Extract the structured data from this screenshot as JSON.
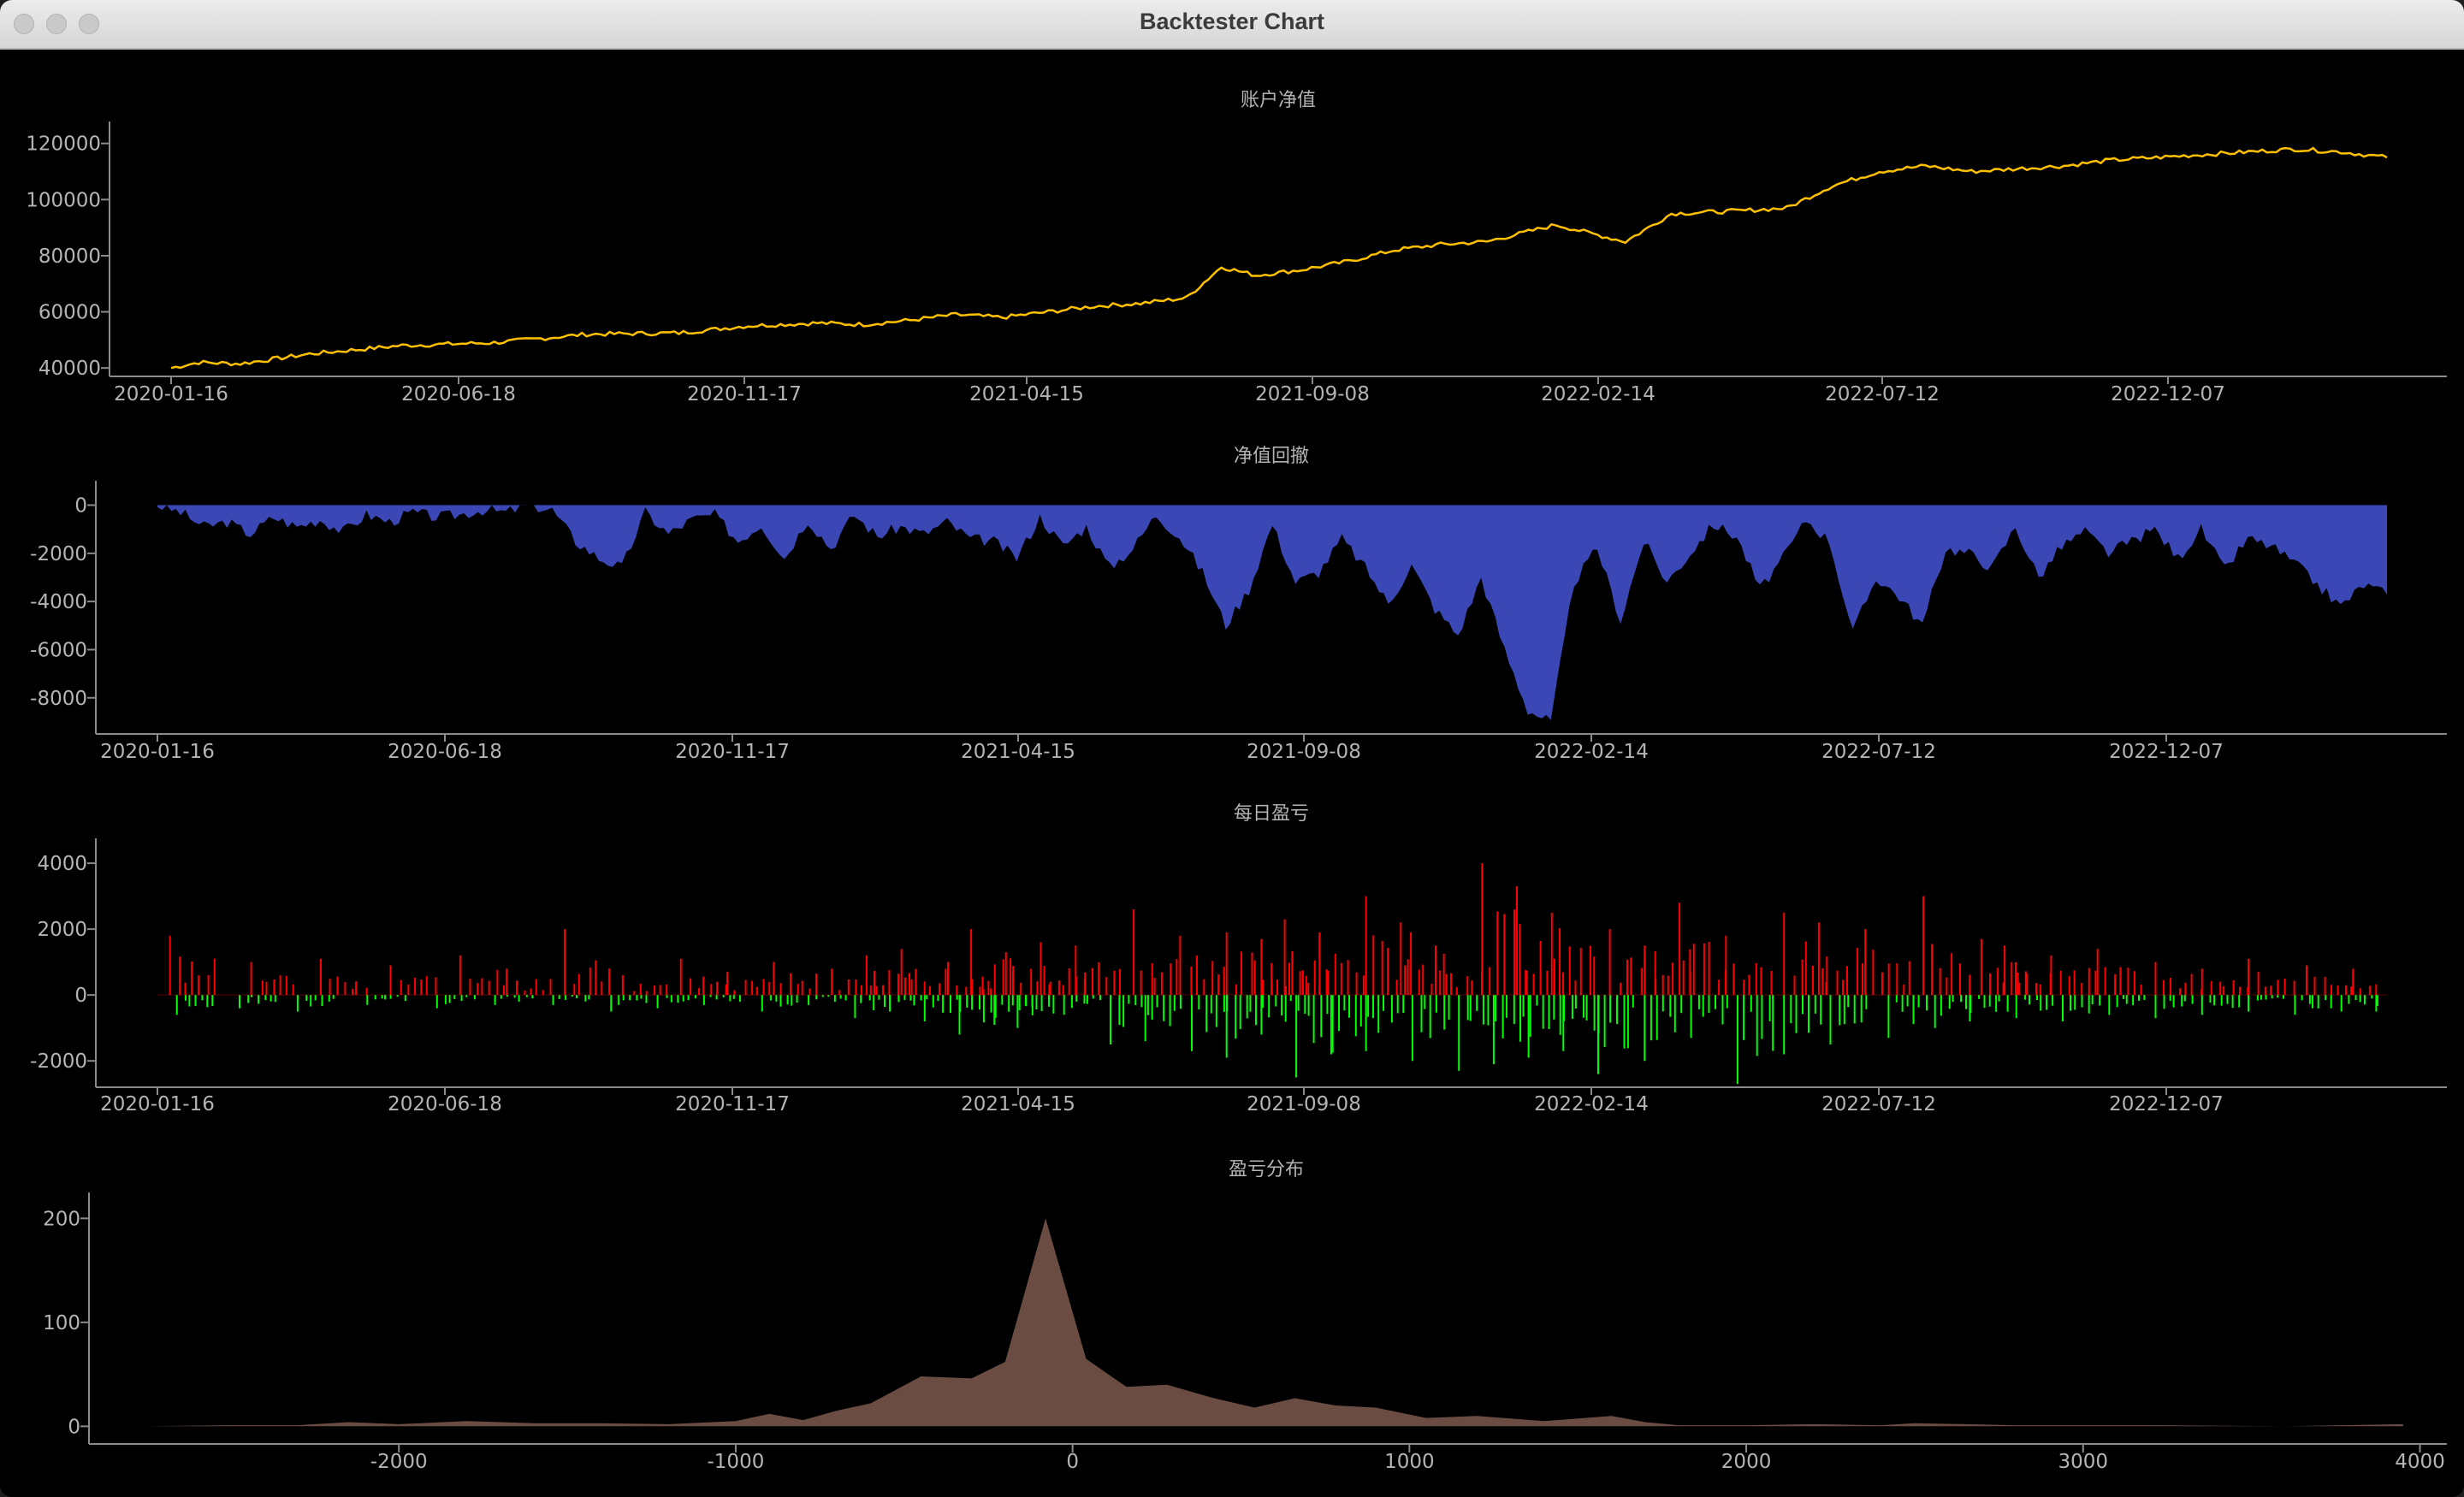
{
  "window": {
    "title": "Backtester Chart"
  },
  "colors": {
    "background": "#000000",
    "axis": "#8a8a8a",
    "text": "#b4b4b4",
    "balance_line": "#ffc000",
    "drawdown_fill": "#3a47b5",
    "pnl_profit": "#ff0000",
    "pnl_loss": "#00ff00",
    "distribution_fill": "#6b4c43"
  },
  "chart_data": [
    {
      "type": "line",
      "title": "账户净值",
      "x_tick_labels": [
        "2020-01-16",
        "2020-06-18",
        "2020-11-17",
        "2021-04-15",
        "2021-09-08",
        "2022-02-14",
        "2022-07-12",
        "2022-12-07"
      ],
      "y_ticks": [
        40000,
        60000,
        80000,
        100000,
        120000
      ],
      "ylim": [
        37000,
        126000
      ],
      "grid": false,
      "series": [
        {
          "x": [
            0,
            12,
            30,
            60,
            100,
            140,
            180,
            220,
            250,
            280,
            300,
            320,
            340,
            360,
            380,
            400,
            420,
            440,
            455,
            470,
            490,
            510,
            530,
            550,
            570,
            600,
            630,
            650,
            680,
            700,
            720,
            740,
            760,
            780,
            800,
            820,
            840,
            860,
            880,
            900,
            920,
            940,
            960
          ],
          "values": [
            40000,
            42000,
            41500,
            45000,
            48000,
            49000,
            52000,
            52500,
            55000,
            56000,
            55500,
            57000,
            59000,
            58000,
            60000,
            62000,
            63000,
            65000,
            76000,
            73000,
            75000,
            78000,
            82000,
            84000,
            85000,
            91000,
            85000,
            95000,
            96000,
            97000,
            105000,
            110000,
            112000,
            110000,
            111000,
            112000,
            114000,
            115000,
            116000,
            117000,
            118000,
            117000,
            115000
          ]
        }
      ]
    },
    {
      "type": "area",
      "title": "净值回撤",
      "x_tick_labels": [
        "2020-01-16",
        "2020-06-18",
        "2020-11-17",
        "2021-04-15",
        "2021-09-08",
        "2022-02-14",
        "2022-07-12",
        "2022-12-07"
      ],
      "y_ticks": [
        0,
        -2000,
        -4000,
        -6000,
        -8000
      ],
      "ylim": [
        -9500,
        800
      ],
      "grid": false,
      "series": [
        {
          "x": [
            0,
            10,
            20,
            30,
            40,
            50,
            60,
            70,
            80,
            90,
            100,
            110,
            120,
            130,
            140,
            150,
            160,
            170,
            180,
            190,
            200,
            210,
            220,
            230,
            240,
            250,
            260,
            270,
            280,
            290,
            300,
            310,
            320,
            330,
            340,
            350,
            360,
            370,
            380,
            390,
            400,
            410,
            420,
            430,
            440,
            450,
            460,
            470,
            480,
            490,
            500,
            510,
            520,
            530,
            540,
            550,
            560,
            570,
            580,
            590,
            600,
            610,
            620,
            630,
            640,
            650,
            660,
            670,
            680,
            690,
            700,
            710,
            720,
            730,
            740,
            750,
            760,
            770,
            780,
            790,
            800,
            810,
            820,
            830,
            840,
            850,
            860,
            870,
            880,
            890,
            900,
            910,
            920,
            930,
            940,
            950,
            960
          ],
          "values": [
            0,
            -300,
            -900,
            -700,
            -1200,
            -500,
            -900,
            -600,
            -1100,
            -400,
            -700,
            -300,
            -500,
            -400,
            -200,
            -300,
            0,
            -200,
            -1500,
            -2200,
            -2600,
            -300,
            -1200,
            -600,
            -400,
            -1500,
            -800,
            -2200,
            -600,
            -1800,
            -400,
            -1300,
            -900,
            -1200,
            -700,
            -1400,
            -1500,
            -2200,
            -500,
            -1700,
            -900,
            -2600,
            -1800,
            -400,
            -1300,
            -2800,
            -5000,
            -3500,
            -800,
            -3200,
            -2800,
            -1400,
            -2600,
            -4100,
            -2500,
            -4300,
            -5400,
            -3000,
            -6000,
            -8500,
            -9000,
            -3200,
            -1800,
            -4800,
            -1500,
            -3200,
            -2000,
            -800,
            -1300,
            -3500,
            -2200,
            -600,
            -1500,
            -5300,
            -3000,
            -3800,
            -5000,
            -1800,
            -2000,
            -2600,
            -900,
            -3000,
            -1700,
            -1100,
            -2000,
            -1500,
            -1000,
            -2200,
            -1000,
            -2700,
            -1400,
            -1700,
            -2400,
            -3300,
            -4200,
            -3300,
            -3700
          ]
        }
      ]
    },
    {
      "type": "bar",
      "title": "每日盈亏",
      "x_tick_labels": [
        "2020-01-16",
        "2020-06-18",
        "2020-11-17",
        "2021-04-15",
        "2021-09-08",
        "2022-02-14",
        "2022-07-12",
        "2022-12-07"
      ],
      "y_ticks": [
        4000,
        2000,
        0,
        -2000
      ],
      "ylim": [
        -2800,
        4600
      ],
      "grid": false,
      "series": [
        {
          "x": [
            5,
            40,
            70,
            100,
            130,
            150,
            175,
            200,
            225,
            245,
            265,
            290,
            305,
            320,
            340,
            350,
            365,
            380,
            395,
            420,
            440,
            460,
            475,
            485,
            500,
            520,
            535,
            550,
            570,
            585,
            600,
            625,
            640,
            655,
            675,
            700,
            715,
            735,
            760,
            785,
            795,
            815,
            835,
            860,
            880,
            900,
            925,
            945
          ],
          "values": [
            1800,
            1000,
            1100,
            900,
            1200,
            800,
            2000,
            600,
            1100,
            700,
            1000,
            800,
            1200,
            1400,
            1000,
            2000,
            1300,
            1600,
            1500,
            2600,
            1800,
            1900,
            1700,
            2300,
            1900,
            3000,
            2200,
            1500,
            4000,
            3300,
            2500,
            2000,
            1500,
            2800,
            1800,
            2500,
            2200,
            2000,
            3000,
            1700,
            1500,
            1200,
            1400,
            1000,
            800,
            1100,
            900,
            800
          ],
          "losses_x": [
            8,
            35,
            60,
            90,
            120,
            145,
            170,
            195,
            215,
            235,
            260,
            280,
            300,
            315,
            330,
            345,
            360,
            370,
            390,
            410,
            425,
            445,
            460,
            475,
            490,
            505,
            520,
            540,
            560,
            575,
            590,
            605,
            620,
            640,
            660,
            680,
            700,
            720,
            745,
            765,
            780,
            800,
            820,
            840,
            860,
            880,
            900,
            920,
            940,
            955
          ],
          "losses": [
            -600,
            -400,
            -500,
            -300,
            -400,
            -300,
            -300,
            -500,
            -400,
            -300,
            -500,
            -300,
            -700,
            -500,
            -800,
            -1200,
            -900,
            -1000,
            -600,
            -1500,
            -1400,
            -1700,
            -1900,
            -1200,
            -2500,
            -1800,
            -1700,
            -2000,
            -2300,
            -2100,
            -1900,
            -1700,
            -2400,
            -2000,
            -1300,
            -2700,
            -1800,
            -1500,
            -1300,
            -1000,
            -800,
            -700,
            -800,
            -600,
            -700,
            -600,
            -500,
            -600,
            -500,
            -500
          ]
        }
      ]
    },
    {
      "type": "area",
      "title": "盈亏分布",
      "x_ticks": [
        -2000,
        -1000,
        0,
        1000,
        2000,
        3000,
        4000
      ],
      "y_ticks": [
        0,
        100,
        200
      ],
      "xlim": [
        -2920,
        4080
      ],
      "ylim": [
        -17,
        220
      ],
      "grid": false,
      "series": [
        {
          "x": [
            -2750,
            -2500,
            -2300,
            -2150,
            -2000,
            -1800,
            -1600,
            -1400,
            -1200,
            -1000,
            -900,
            -800,
            -700,
            -600,
            -450,
            -300,
            -200,
            -80,
            40,
            160,
            280,
            420,
            540,
            660,
            780,
            900,
            1050,
            1200,
            1400,
            1600,
            1700,
            1800,
            2000,
            2200,
            2400,
            2500,
            2800,
            3200,
            3600,
            3950
          ],
          "values": [
            0,
            1,
            1,
            4,
            2,
            5,
            3,
            3,
            2,
            5,
            12,
            6,
            15,
            22,
            48,
            46,
            62,
            200,
            65,
            38,
            40,
            27,
            18,
            27,
            20,
            18,
            8,
            10,
            5,
            10,
            4,
            1,
            1,
            2,
            1,
            3,
            1,
            1,
            0,
            2
          ]
        }
      ]
    }
  ]
}
